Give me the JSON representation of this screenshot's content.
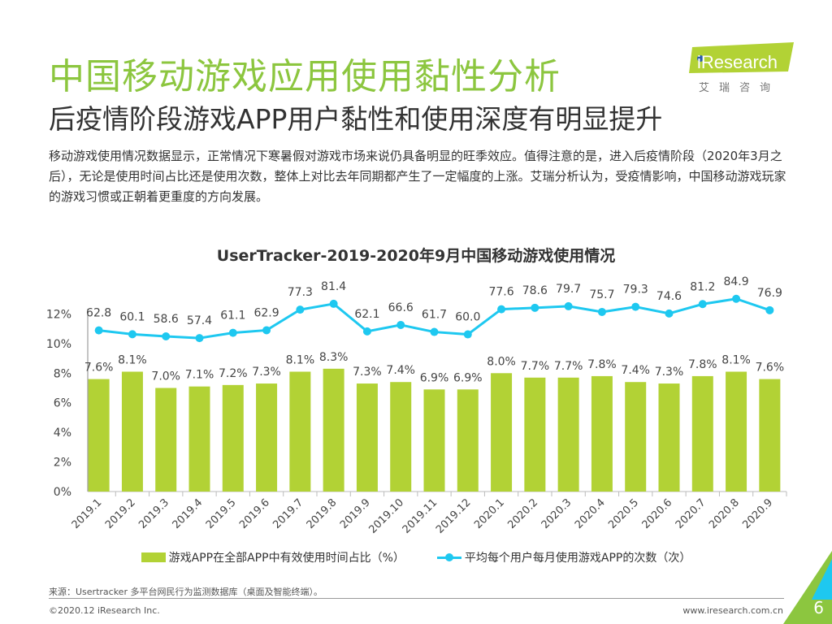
{
  "header": {
    "title": "中国移动游戏应用使用黏性分析",
    "subtitle": "后疫情阶段游戏APP用户黏性和使用深度有明显提升",
    "body": "移动游戏使用情况数据显示，正常情况下寒暑假对游戏市场来说仍具备明显的旺季效应。值得注意的是，进入后疫情阶段（2020年3月之后），无论是使用时间占比还是使用次数，整体上对比去年同期都产生了一定幅度的上涨。艾瑞分析认为，受疫情影响，中国移动游戏玩家的游戏习惯或正朝着更重度的方向发展。"
  },
  "logo": {
    "text": "iResearch",
    "cn": "艾瑞咨询"
  },
  "colors": {
    "title": "#8cc63f",
    "bar": "#b2d235",
    "line": "#1ec8f0"
  },
  "chart_data": {
    "type": "bar+line",
    "title": "UserTracker-2019-2020年9月中国移动游戏使用情况",
    "categories": [
      "2019.1",
      "2019.2",
      "2019.3",
      "2019.4",
      "2019.5",
      "2019.6",
      "2019.7",
      "2019.8",
      "2019.9",
      "2019.10",
      "2019.11",
      "2019.12",
      "2020.1",
      "2020.2",
      "2020.3",
      "2020.4",
      "2020.5",
      "2020.6",
      "2020.7",
      "2020.8",
      "2020.9"
    ],
    "series": [
      {
        "name": "游戏APP在全部APP中有效使用时间占比（%）",
        "type": "bar",
        "axis": "left",
        "values": [
          7.6,
          8.1,
          7.0,
          7.1,
          7.2,
          7.3,
          8.1,
          8.3,
          7.3,
          7.4,
          6.9,
          6.9,
          8.0,
          7.7,
          7.7,
          7.8,
          7.4,
          7.3,
          7.8,
          8.1,
          7.6
        ],
        "labels": [
          "7.6%",
          "8.1%",
          "7.0%",
          "7.1%",
          "7.2%",
          "7.3%",
          "8.1%",
          "8.3%",
          "7.3%",
          "7.4%",
          "6.9%",
          "6.9%",
          "8.0%",
          "7.7%",
          "7.7%",
          "7.8%",
          "7.4%",
          "7.3%",
          "7.8%",
          "8.1%",
          "7.6%"
        ]
      },
      {
        "name": "平均每个用户每月使用游戏APP的次数（次）",
        "type": "line",
        "axis": "right-hidden",
        "values": [
          62.8,
          60.1,
          58.6,
          57.4,
          61.1,
          62.9,
          77.3,
          81.4,
          62.1,
          66.6,
          61.7,
          60.0,
          77.6,
          78.6,
          79.7,
          75.7,
          79.3,
          74.6,
          81.2,
          84.9,
          76.9
        ],
        "labels": [
          "62.8",
          "60.1",
          "58.6",
          "57.4",
          "61.1",
          "62.9",
          "77.3",
          "81.4",
          "62.1",
          "66.6",
          "61.7",
          "60.0",
          "77.6",
          "78.6",
          "79.7",
          "75.7",
          "79.3",
          "74.6",
          "81.2",
          "84.9",
          "76.9"
        ]
      }
    ],
    "yticks": [
      "0%",
      "2%",
      "4%",
      "6%",
      "8%",
      "10%",
      "12%"
    ],
    "ylim": [
      0,
      14
    ],
    "y2lim": [
      -50,
      95
    ],
    "grid": false,
    "legend": "bottom"
  },
  "footer": {
    "source": "来源：Usertracker 多平台网民行为监测数据库（桌面及智能终端）。",
    "copyright": "©2020.12 iResearch Inc.",
    "site": "www.iresearch.com.cn",
    "page": "6"
  }
}
